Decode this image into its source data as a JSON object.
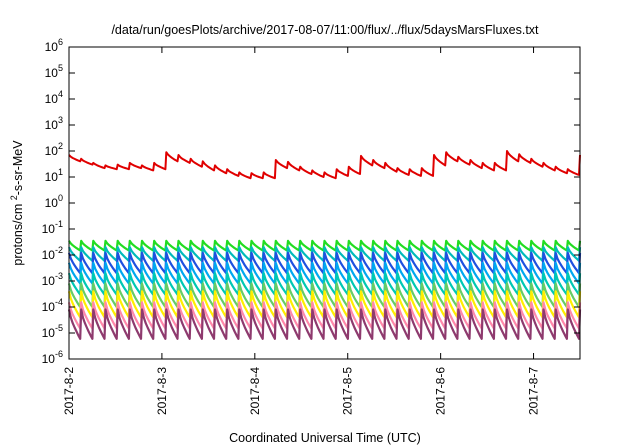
{
  "chart_data": {
    "type": "line",
    "title": "/data/run/goesPlots/archive/2017-08-07/11:00/flux/../flux/5daysMarsFluxes.txt",
    "xlabel": "Coordinated Universal Time (UTC)",
    "ylabel": "protons/cm²-s-sr-MeV",
    "yscale": "log",
    "ylim": [
      1e-06,
      1000000.0
    ],
    "xlim": [
      0,
      5.5
    ],
    "grid": false,
    "y_ticks": [
      {
        "exp": "-6",
        "value": 1e-06
      },
      {
        "exp": "-5",
        "value": 1e-05
      },
      {
        "exp": "-4",
        "value": 0.0001
      },
      {
        "exp": "-3",
        "value": 0.001
      },
      {
        "exp": "-2",
        "value": 0.01
      },
      {
        "exp": "-1",
        "value": 0.1
      },
      {
        "exp": "0",
        "value": 1
      },
      {
        "exp": "1",
        "value": 10
      },
      {
        "exp": "2",
        "value": 100
      },
      {
        "exp": "3",
        "value": 1000
      },
      {
        "exp": "4",
        "value": 10000
      },
      {
        "exp": "5",
        "value": 100000
      },
      {
        "exp": "6",
        "value": 1000000
      }
    ],
    "x_ticks": [
      {
        "label": "2017-8-2",
        "value": 0
      },
      {
        "label": "2017-8-3",
        "value": 1
      },
      {
        "label": "2017-8-4",
        "value": 2
      },
      {
        "label": "2017-8-5",
        "value": 3
      },
      {
        "label": "2017-8-6",
        "value": 4
      },
      {
        "label": "2017-8-7",
        "value": 5
      }
    ],
    "series": [
      {
        "color": "#e00000",
        "peaks": [
          70,
          50,
          35,
          28,
          30,
          35,
          28,
          35,
          90,
          70,
          50,
          40,
          28,
          20,
          15,
          14,
          15,
          45,
          38,
          25,
          18,
          15,
          20,
          25,
          65,
          45,
          35,
          22,
          20,
          22,
          70,
          90,
          60,
          45,
          35,
          35,
          100,
          75,
          50,
          35,
          25,
          20
        ],
        "troughs": [
          40,
          30,
          22,
          20,
          20,
          22,
          18,
          20,
          40,
          35,
          25,
          18,
          14,
          11,
          9,
          9,
          9,
          22,
          18,
          13,
          10,
          9,
          11,
          13,
          28,
          22,
          16,
          12,
          11,
          11,
          28,
          40,
          30,
          22,
          18,
          18,
          40,
          35,
          25,
          18,
          14,
          12
        ]
      },
      {
        "color": "#22dd22",
        "peaks": [
          0.035
        ],
        "troughs": [
          0.015
        ]
      },
      {
        "color": "#00bbbb",
        "peaks": [
          0.02
        ],
        "troughs": [
          0.006
        ]
      },
      {
        "color": "#1e50e0",
        "peaks": [
          0.012
        ],
        "troughs": [
          0.002
        ]
      },
      {
        "color": "#00a8f0",
        "peaks": [
          0.005
        ],
        "troughs": [
          0.0008
        ]
      },
      {
        "color": "#00c8b4",
        "peaks": [
          0.002
        ],
        "troughs": [
          0.0003
        ]
      },
      {
        "color": "#66cc66",
        "peaks": [
          0.0008
        ],
        "troughs": [
          0.0001
        ]
      },
      {
        "color": "#ffee00",
        "peaks": [
          0.0004
        ],
        "troughs": [
          4e-05
        ]
      },
      {
        "color": "#ff88aa",
        "peaks": [
          0.00015
        ],
        "troughs": [
          1.5e-05
        ]
      },
      {
        "color": "#8e3a6e",
        "peaks": [
          8e-05
        ],
        "troughs": [
          6e-06
        ]
      }
    ]
  }
}
